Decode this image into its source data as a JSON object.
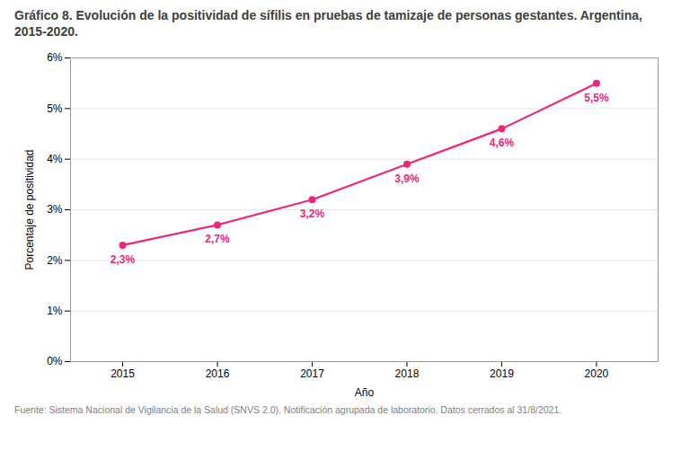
{
  "chart_data": {
    "type": "line",
    "title": "Gráfico 8. Evolución de la positividad de sífilis en pruebas de tamizaje de personas gestantes. Argentina, 2015-2020.",
    "caption": "Fuente: Sistema Nacional de Vigilancia de la Salud (SNVS 2.0). Notificación agrupada de laboratorio. Datos cerrados al 31/8/2021.",
    "x_label": "Año",
    "y_label": "Porcentaje de positividad",
    "x": [
      2015,
      2016,
      2017,
      2018,
      2019,
      2020
    ],
    "values": [
      2.3,
      2.7,
      3.2,
      3.9,
      4.6,
      5.5
    ],
    "value_labels": [
      "2,3%",
      "2,7%",
      "3,2%",
      "3,9%",
      "4,6%",
      "5,5%"
    ],
    "color": "#F0257A",
    "xlim": [
      2014.45,
      2020.65
    ],
    "xticks": [
      2015,
      2016,
      2017,
      2018,
      2019,
      2020
    ],
    "ylim": [
      0,
      6
    ],
    "yticks": [
      {
        "value": 0,
        "label": "0%"
      },
      {
        "value": 1,
        "label": "1%"
      },
      {
        "value": 2,
        "label": "2%"
      },
      {
        "value": 3,
        "label": "3%"
      },
      {
        "value": 4,
        "label": "4%"
      },
      {
        "value": 5,
        "label": "5%"
      },
      {
        "value": 6,
        "label": "6%"
      }
    ],
    "grid": true,
    "data_labels": true
  }
}
